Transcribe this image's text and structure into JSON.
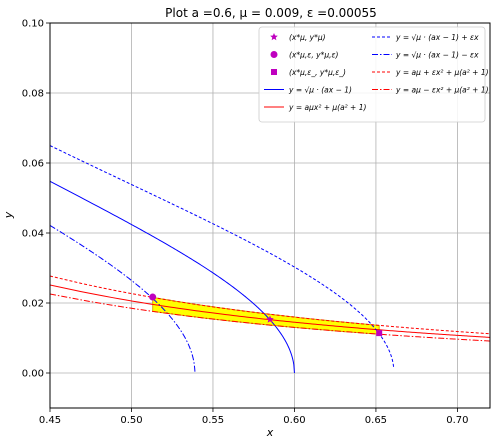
{
  "chart_data": {
    "type": "line",
    "title": "Plot a =0.6, μ = 0.009, ε =0.00055",
    "xlabel": "x",
    "ylabel": "y",
    "xlim": [
      0.45,
      0.72
    ],
    "ylim": [
      -0.01,
      0.1
    ],
    "xticks": [
      "0.45",
      "0.50",
      "0.55",
      "0.60",
      "0.65",
      "0.70"
    ],
    "yticks": [
      "0.00",
      "0.02",
      "0.04",
      "0.06",
      "0.08",
      "0.10"
    ],
    "grid": true,
    "legend_position": "upper right",
    "legend_columns": 2,
    "parameters": {
      "a": 0.6,
      "mu": 0.009,
      "eps": 0.00055
    },
    "series": [
      {
        "name": "y = √(μ·(a/x − 1))",
        "color": "#0000ff",
        "style": "solid",
        "curve": "sqrt",
        "x_range": [
          0.45,
          0.6
        ]
      },
      {
        "name": "y = aμ / (x² + μ(a²+1))",
        "color": "#ff0000",
        "style": "solid",
        "curve": "rational",
        "x_range": [
          0.45,
          0.72
        ]
      },
      {
        "name": "y = √(μ·(a/x − 1) + ε/x)",
        "color": "#0000ff",
        "style": "dashed",
        "curve": "sqrt_plus",
        "x_range": [
          0.45,
          0.661
        ]
      },
      {
        "name": "y = √(μ·(a/x − 1) − ε/x)",
        "color": "#0000ff",
        "style": "dashdot",
        "curve": "sqrt_minus",
        "x_range": [
          0.45,
          0.539
        ]
      },
      {
        "name": "y = (aμ + ε) / (x² + μ(a²+1))",
        "color": "#ff0000",
        "style": "dashed",
        "curve": "rational_plus",
        "x_range": [
          0.45,
          0.72
        ]
      },
      {
        "name": "y = (aμ − ε) / (x² + μ(a²+1))",
        "color": "#ff0000",
        "style": "dashdot",
        "curve": "rational_minus",
        "x_range": [
          0.45,
          0.72
        ]
      }
    ],
    "markers": [
      {
        "name": "(x*μ, y*μ)",
        "marker": "star",
        "color": "#bf00bf",
        "x": 0.585,
        "y": 0.0153
      },
      {
        "name": "(x*μ,ε, y*μ,ε)",
        "marker": "circle",
        "color": "#bf00bf",
        "x": 0.513,
        "y": 0.0217
      },
      {
        "name": "(x*μ,ε−, y*μ,ε−)",
        "marker": "square",
        "color": "#bf00bf",
        "x": 0.652,
        "y": 0.0114
      }
    ],
    "shaded_region": {
      "fill": "#ffff00",
      "edge": "#d4b000",
      "x_range": [
        0.513,
        0.652
      ]
    },
    "legend_left": [
      {
        "ref": "markers.0",
        "parts": [
          "(x",
          "*",
          "μ",
          ", y",
          "*",
          "μ",
          ")"
        ]
      },
      {
        "ref": "markers.1",
        "parts": [
          "(x",
          "*",
          "μ,ε",
          ", y",
          "*",
          "μ,ε",
          ")"
        ]
      },
      {
        "ref": "markers.2",
        "parts": [
          "(x",
          "*",
          "μ,ε_",
          ", y",
          "*",
          "μ,ε_",
          ")"
        ]
      },
      {
        "ref": "series.0",
        "parts": [
          "y = √μ · (",
          "a",
          "x",
          " − 1)"
        ]
      },
      {
        "ref": "series.1",
        "parts": [
          "y = ",
          "aμ",
          "x² + μ(a² + 1)"
        ]
      }
    ],
    "legend_right": [
      {
        "ref": "series.2",
        "parts": [
          "y = √μ · (",
          "a",
          "x",
          " − 1) + ",
          "ε",
          "x"
        ]
      },
      {
        "ref": "series.3",
        "parts": [
          "y = √μ · (",
          "a",
          "x",
          " − 1) − ",
          "ε",
          "x"
        ]
      },
      {
        "ref": "series.4",
        "parts": [
          "y = ",
          "aμ + ε",
          "x² + μ(a² + 1)"
        ]
      },
      {
        "ref": "series.5",
        "parts": [
          "y = ",
          "aμ − ε",
          "x² + μ(a² + 1)"
        ]
      }
    ]
  }
}
